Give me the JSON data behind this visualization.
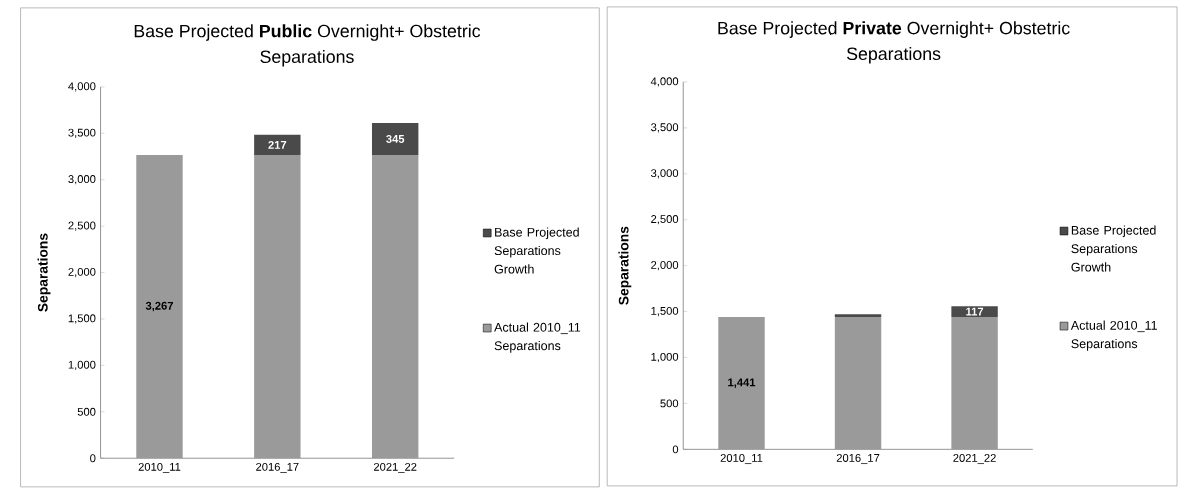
{
  "chart_data": [
    {
      "type": "bar",
      "stacked": true,
      "title": "Base Projected **Public** Overnight+ Obstetric Separations",
      "ylabel": "Separations",
      "categories": [
        "2010_11",
        "2016_17",
        "2021_22"
      ],
      "series": [
        {
          "name": "Actual 2010_11 Separations",
          "color": "#9a9a9a",
          "values": [
            3267,
            3267,
            3267
          ],
          "value_labels": [
            "3,267",
            null,
            null
          ]
        },
        {
          "name": "Base Projected Separations Growth",
          "color": "#4a4a4a",
          "values": [
            null,
            217,
            345
          ],
          "value_labels": [
            null,
            "217",
            "345"
          ]
        }
      ],
      "ylim": [
        0,
        4000
      ],
      "yticks": [
        0,
        500,
        {
          "value": 1000,
          "label": "1,000"
        },
        {
          "value": 1500,
          "label": "1,500"
        },
        {
          "value": 2000,
          "label": "2,000"
        },
        {
          "value": 2500,
          "label": "2,500"
        },
        {
          "value": 3000,
          "label": "3,000"
        },
        {
          "value": 3500,
          "label": "3,500"
        },
        {
          "value": 4000,
          "label": "4,000"
        }
      ],
      "legend": "right"
    },
    {
      "type": "bar",
      "stacked": true,
      "title": "Base Projected **Private** Overnight+ Obstetric Separations",
      "ylabel": "Separations",
      "categories": [
        "2010_11",
        "2016_17",
        "2021_22"
      ],
      "series": [
        {
          "name": "Actual 2010_11 Separations",
          "color": "#9a9a9a",
          "values": [
            1441,
            1441,
            1441
          ],
          "value_labels": [
            "1,441",
            null,
            null
          ]
        },
        {
          "name": "Base Projected Separations Growth",
          "color": "#4a4a4a",
          "values": [
            null,
            30,
            117
          ],
          "value_labels": [
            null,
            null,
            "117"
          ]
        }
      ],
      "ylim": [
        0,
        4000
      ],
      "yticks": [
        0,
        500,
        {
          "value": 1000,
          "label": "1,000"
        },
        {
          "value": 1500,
          "label": "1,500"
        },
        {
          "value": 2000,
          "label": "2,000"
        },
        {
          "value": 2500,
          "label": "2,500"
        },
        {
          "value": 3000,
          "label": "3,000"
        },
        {
          "value": 3500,
          "label": "3,500"
        },
        {
          "value": 4000,
          "label": "4,000"
        }
      ],
      "legend": "right"
    }
  ]
}
